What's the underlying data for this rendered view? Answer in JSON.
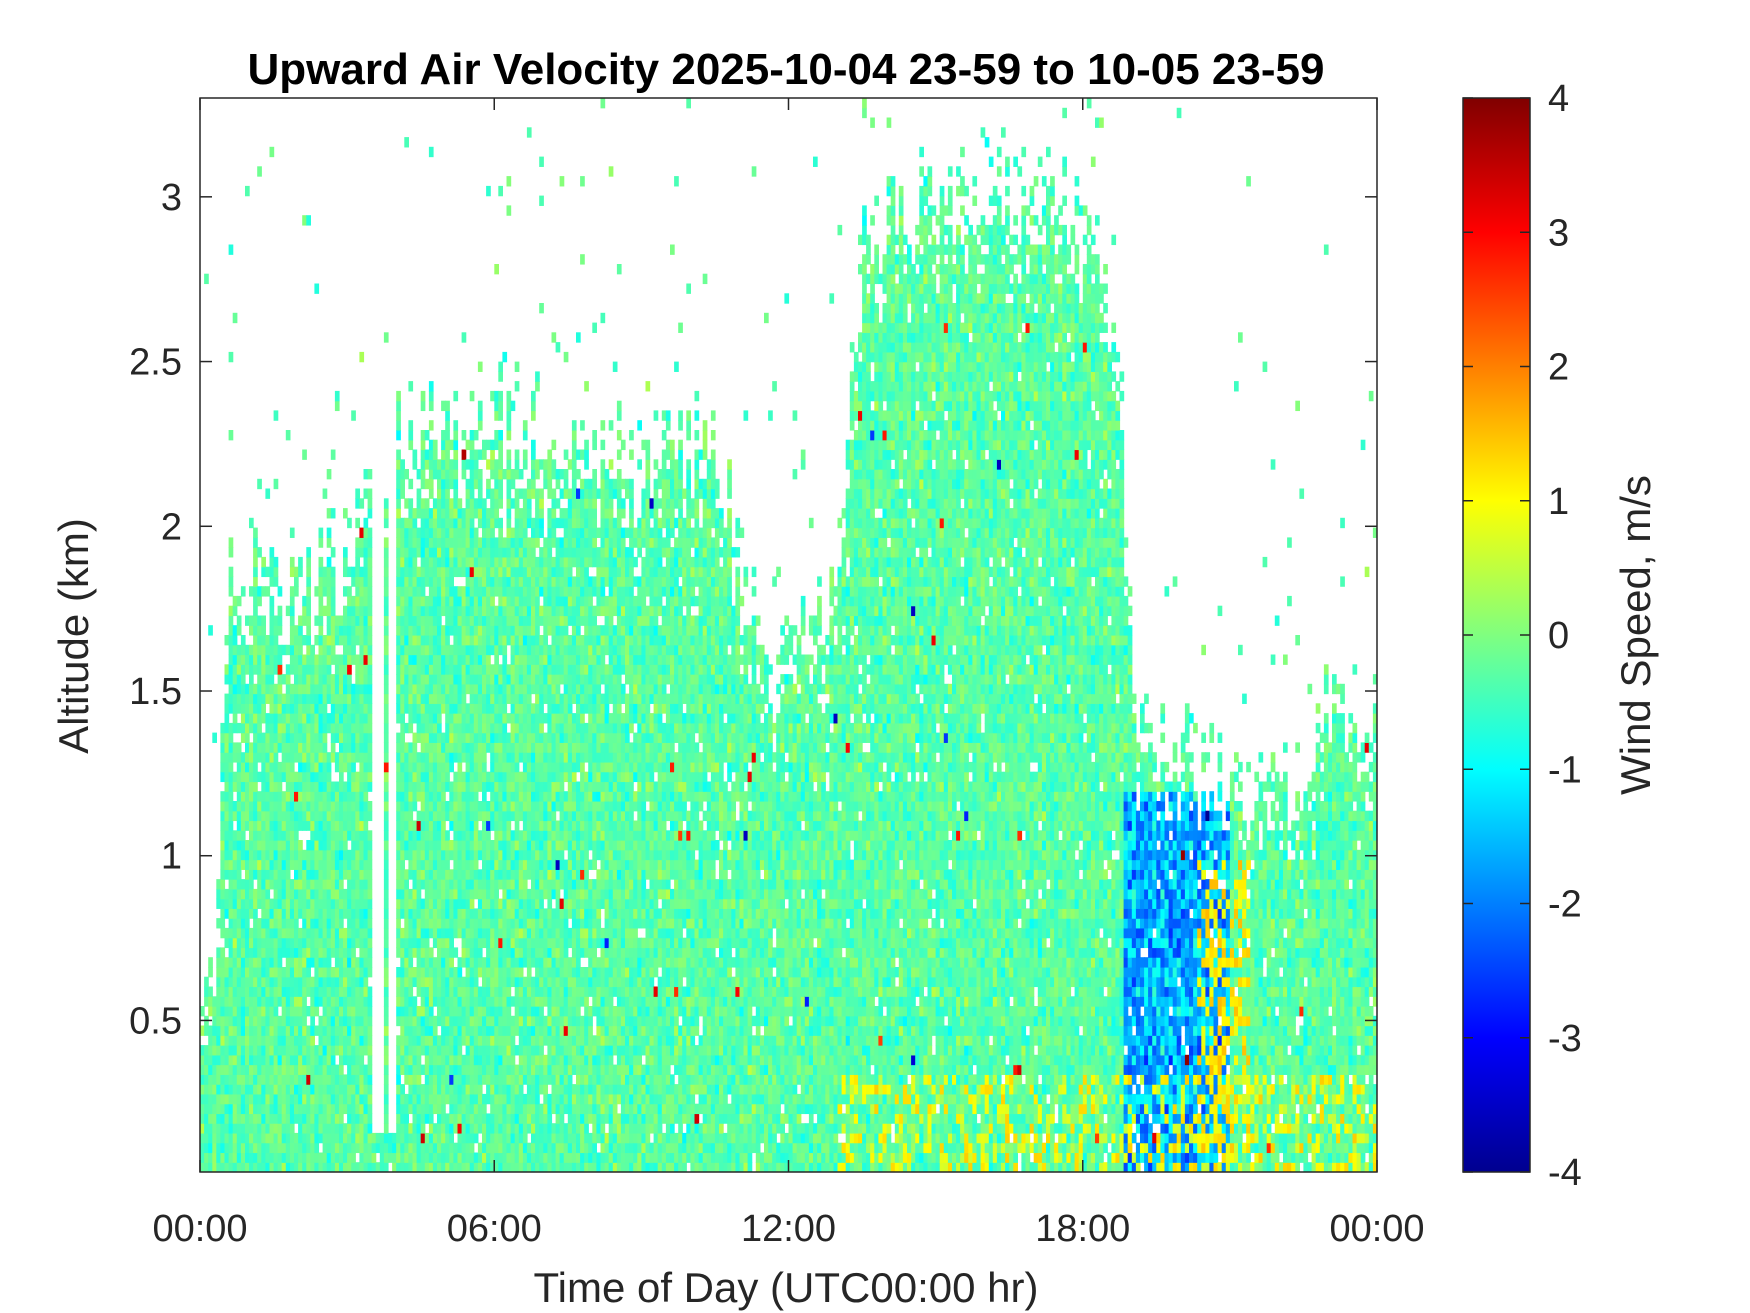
{
  "chart_data": {
    "type": "heatmap",
    "title": "Upward Air Velocity 2025-10-04 23-59 to 10-05 23-59",
    "xlabel": "Time of Day (UTC00:00 hr)",
    "ylabel": "Altitude (km)",
    "x_ticks": [
      "00:00",
      "06:00",
      "12:00",
      "18:00",
      "00:00"
    ],
    "x_range_hours": [
      0,
      24
    ],
    "y_ticks": [
      "0.5",
      "1",
      "1.5",
      "2",
      "2.5",
      "3"
    ],
    "y_tick_values": [
      0.5,
      1,
      1.5,
      2,
      2.5,
      3
    ],
    "y_range_km": [
      0.04,
      3.3
    ],
    "colorbar": {
      "label": "Wind Speed, m/s",
      "ticks": [
        "4",
        "3",
        "2",
        "1",
        "0",
        "-1",
        "-2",
        "-3",
        "-4"
      ],
      "range": [
        -4,
        4
      ],
      "colormap": "jet"
    },
    "data_coverage_top_km": [
      {
        "hour": 0.0,
        "top": 0.35
      },
      {
        "hour": 0.3,
        "top": 0.6
      },
      {
        "hour": 0.6,
        "top": 1.85
      },
      {
        "hour": 2.0,
        "top": 1.85
      },
      {
        "hour": 3.0,
        "top": 1.9
      },
      {
        "hour": 4.2,
        "top": 2.3
      },
      {
        "hour": 5.5,
        "top": 2.4
      },
      {
        "hour": 7.0,
        "top": 2.3
      },
      {
        "hour": 9.0,
        "top": 2.2
      },
      {
        "hour": 10.5,
        "top": 2.3
      },
      {
        "hour": 11.5,
        "top": 1.6
      },
      {
        "hour": 12.8,
        "top": 1.7
      },
      {
        "hour": 13.5,
        "top": 2.9
      },
      {
        "hour": 15.0,
        "top": 3.0
      },
      {
        "hour": 17.5,
        "top": 3.0
      },
      {
        "hour": 18.7,
        "top": 2.7
      },
      {
        "hour": 19.0,
        "top": 1.5
      },
      {
        "hour": 20.0,
        "top": 1.3
      },
      {
        "hour": 21.5,
        "top": 1.2
      },
      {
        "hour": 23.0,
        "top": 1.45
      },
      {
        "hour": 24.0,
        "top": 1.5
      }
    ],
    "gap_hours": [
      [
        3.5,
        4.1
      ]
    ],
    "typical_values_m_s": {
      "background": -0.3,
      "downdraft_region": {
        "hours": [
          18.8,
          21.0
        ],
        "km": [
          0.05,
          1.2
        ],
        "value": -2.0
      },
      "updraft_streak": {
        "hours": [
          20.3,
          21.4
        ],
        "km": [
          0.1,
          1.0
        ],
        "value": 1.3
      },
      "surface_updrafts": {
        "hours": [
          13.0,
          24.0
        ],
        "km": [
          0.04,
          0.35
        ],
        "value": 1.0
      }
    }
  }
}
